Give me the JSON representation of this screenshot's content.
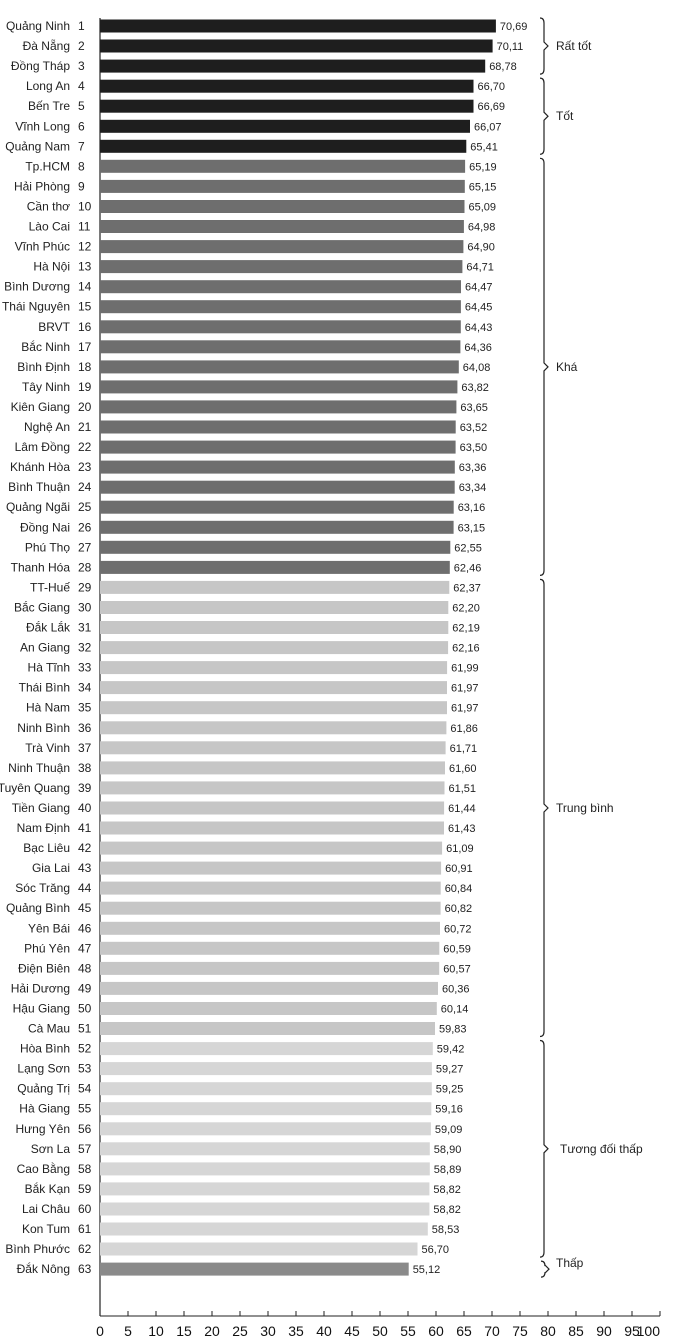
{
  "chart_data": {
    "type": "bar",
    "orientation": "horizontal",
    "xlim": [
      0,
      100
    ],
    "xticks": [
      0,
      5,
      10,
      15,
      20,
      25,
      30,
      35,
      40,
      45,
      50,
      55,
      60,
      65,
      70,
      75,
      80,
      85,
      90,
      95,
      100
    ],
    "colors": {
      "Rất tốt": "#1e1e1e",
      "Tốt": "#1e1e1e",
      "Khá": "#6e6e6e",
      "Trung bình": "#c6c6c6",
      "Tương đối thấp": "#d6d6d6",
      "Thấp": "#8a8a8a"
    },
    "rows": [
      {
        "name": "Quảng Ninh",
        "rank": "1",
        "value": 70.69,
        "label": "70,69",
        "group": "Rất tốt"
      },
      {
        "name": "Đà Nẵng",
        "rank": "2",
        "value": 70.11,
        "label": "70,11",
        "group": "Rất tốt"
      },
      {
        "name": "Đồng Tháp",
        "rank": "3",
        "value": 68.78,
        "label": "68,78",
        "group": "Rất tốt"
      },
      {
        "name": "Long An",
        "rank": "4",
        "value": 66.7,
        "label": "66,70",
        "group": "Tốt"
      },
      {
        "name": "Bến Tre",
        "rank": "5",
        "value": 66.69,
        "label": "66,69",
        "group": "Tốt"
      },
      {
        "name": "Vĩnh Long",
        "rank": "6",
        "value": 66.07,
        "label": "66,07",
        "group": "Tốt"
      },
      {
        "name": "Quảng Nam",
        "rank": "7",
        "value": 65.41,
        "label": "65,41",
        "group": "Tốt"
      },
      {
        "name": "Tp.HCM",
        "rank": "8",
        "value": 65.19,
        "label": "65,19",
        "group": "Khá"
      },
      {
        "name": "Hải Phòng",
        "rank": "9",
        "value": 65.15,
        "label": "65,15",
        "group": "Khá"
      },
      {
        "name": "Cần thơ",
        "rank": "10",
        "value": 65.09,
        "label": "65,09",
        "group": "Khá"
      },
      {
        "name": "Lào Cai",
        "rank": "11",
        "value": 64.98,
        "label": "64,98",
        "group": "Khá"
      },
      {
        "name": "Vĩnh Phúc",
        "rank": "12",
        "value": 64.9,
        "label": "64,90",
        "group": "Khá"
      },
      {
        "name": "Hà Nội",
        "rank": "13",
        "value": 64.71,
        "label": "64,71",
        "group": "Khá"
      },
      {
        "name": "Bình Dương",
        "rank": "14",
        "value": 64.47,
        "label": "64,47",
        "group": "Khá"
      },
      {
        "name": "Thái Nguyên",
        "rank": "15",
        "value": 64.45,
        "label": "64,45",
        "group": "Khá"
      },
      {
        "name": "BRVT",
        "rank": "16",
        "value": 64.43,
        "label": "64,43",
        "group": "Khá"
      },
      {
        "name": "Bắc Ninh",
        "rank": "17",
        "value": 64.36,
        "label": "64,36",
        "group": "Khá"
      },
      {
        "name": "Bình Định",
        "rank": "18",
        "value": 64.08,
        "label": "64,08",
        "group": "Khá"
      },
      {
        "name": "Tây Ninh",
        "rank": "19",
        "value": 63.82,
        "label": "63,82",
        "group": "Khá"
      },
      {
        "name": "Kiên Giang",
        "rank": "20",
        "value": 63.65,
        "label": "63,65",
        "group": "Khá"
      },
      {
        "name": "Nghệ An",
        "rank": "21",
        "value": 63.52,
        "label": "63,52",
        "group": "Khá"
      },
      {
        "name": "Lâm Đồng",
        "rank": "22",
        "value": 63.5,
        "label": "63,50",
        "group": "Khá"
      },
      {
        "name": "Khánh Hòa",
        "rank": "23",
        "value": 63.36,
        "label": "63,36",
        "group": "Khá"
      },
      {
        "name": "Bình Thuận",
        "rank": "24",
        "value": 63.34,
        "label": "63,34",
        "group": "Khá"
      },
      {
        "name": "Quảng Ngãi",
        "rank": "25",
        "value": 63.16,
        "label": "63,16",
        "group": "Khá"
      },
      {
        "name": "Đồng Nai",
        "rank": "26",
        "value": 63.15,
        "label": "63,15",
        "group": "Khá"
      },
      {
        "name": "Phú Thọ",
        "rank": "27",
        "value": 62.55,
        "label": "62,55",
        "group": "Khá"
      },
      {
        "name": "Thanh Hóa",
        "rank": "28",
        "value": 62.46,
        "label": "62,46",
        "group": "Khá"
      },
      {
        "name": "TT-Huế",
        "rank": "29",
        "value": 62.37,
        "label": "62,37",
        "group": "Trung bình"
      },
      {
        "name": "Bắc Giang",
        "rank": "30",
        "value": 62.2,
        "label": "62,20",
        "group": "Trung bình"
      },
      {
        "name": "Đắk Lắk",
        "rank": "31",
        "value": 62.19,
        "label": "62,19",
        "group": "Trung bình"
      },
      {
        "name": "An Giang",
        "rank": "32",
        "value": 62.16,
        "label": "62,16",
        "group": "Trung bình"
      },
      {
        "name": "Hà Tĩnh",
        "rank": "33",
        "value": 61.99,
        "label": "61,99",
        "group": "Trung bình"
      },
      {
        "name": "Thái Bình",
        "rank": "34",
        "value": 61.97,
        "label": "61,97",
        "group": "Trung bình"
      },
      {
        "name": "Hà Nam",
        "rank": "35",
        "value": 61.97,
        "label": "61,97",
        "group": "Trung bình"
      },
      {
        "name": "Ninh Bình",
        "rank": "36",
        "value": 61.86,
        "label": "61,86",
        "group": "Trung bình"
      },
      {
        "name": "Trà Vinh",
        "rank": "37",
        "value": 61.71,
        "label": "61,71",
        "group": "Trung bình"
      },
      {
        "name": "Ninh Thuận",
        "rank": "38",
        "value": 61.6,
        "label": "61,60",
        "group": "Trung bình"
      },
      {
        "name": "Tuyên Quang",
        "rank": "39",
        "value": 61.51,
        "label": "61,51",
        "group": "Trung bình"
      },
      {
        "name": "Tiền Giang",
        "rank": "40",
        "value": 61.44,
        "label": "61,44",
        "group": "Trung bình"
      },
      {
        "name": "Nam Định",
        "rank": "41",
        "value": 61.43,
        "label": "61,43",
        "group": "Trung bình"
      },
      {
        "name": "Bạc Liêu",
        "rank": "42",
        "value": 61.09,
        "label": "61,09",
        "group": "Trung bình"
      },
      {
        "name": "Gia Lai",
        "rank": "43",
        "value": 60.91,
        "label": "60,91",
        "group": "Trung bình"
      },
      {
        "name": "Sóc Trăng",
        "rank": "44",
        "value": 60.84,
        "label": "60,84",
        "group": "Trung bình"
      },
      {
        "name": "Quảng Bình",
        "rank": "45",
        "value": 60.82,
        "label": "60,82",
        "group": "Trung bình"
      },
      {
        "name": "Yên Bái",
        "rank": "46",
        "value": 60.72,
        "label": "60,72",
        "group": "Trung bình"
      },
      {
        "name": "Phú Yên",
        "rank": "47",
        "value": 60.59,
        "label": "60,59",
        "group": "Trung bình"
      },
      {
        "name": "Điện Biên",
        "rank": "48",
        "value": 60.57,
        "label": "60,57",
        "group": "Trung bình"
      },
      {
        "name": "Hải Dương",
        "rank": "49",
        "value": 60.36,
        "label": "60,36",
        "group": "Trung bình"
      },
      {
        "name": "Hậu Giang",
        "rank": "50",
        "value": 60.14,
        "label": "60,14",
        "group": "Trung bình"
      },
      {
        "name": "Cà Mau",
        "rank": "51",
        "value": 59.83,
        "label": "59,83",
        "group": "Trung bình"
      },
      {
        "name": "Hòa Bình",
        "rank": "52",
        "value": 59.42,
        "label": "59,42",
        "group": "Tương đối thấp"
      },
      {
        "name": "Lạng Sơn",
        "rank": "53",
        "value": 59.27,
        "label": "59,27",
        "group": "Tương đối thấp"
      },
      {
        "name": "Quảng Trị",
        "rank": "54",
        "value": 59.25,
        "label": "59,25",
        "group": "Tương đối thấp"
      },
      {
        "name": "Hà Giang",
        "rank": "55",
        "value": 59.16,
        "label": "59,16",
        "group": "Tương đối thấp"
      },
      {
        "name": "Hưng Yên",
        "rank": "56",
        "value": 59.09,
        "label": "59,09",
        "group": "Tương đối thấp"
      },
      {
        "name": "Sơn La",
        "rank": "57",
        "value": 58.9,
        "label": "58,90",
        "group": "Tương đối thấp"
      },
      {
        "name": "Cao Bằng",
        "rank": "58",
        "value": 58.89,
        "label": "58,89",
        "group": "Tương đối thấp"
      },
      {
        "name": "Bắk Kạn",
        "rank": "59",
        "value": 58.82,
        "label": "58,82",
        "group": "Tương đối thấp"
      },
      {
        "name": "Lai Châu",
        "rank": "60",
        "value": 58.82,
        "label": "58,82",
        "group": "Tương đối thấp"
      },
      {
        "name": "Kon Tum",
        "rank": "61",
        "value": 58.53,
        "label": "58,53",
        "group": "Tương đối thấp"
      },
      {
        "name": "Bình Phước",
        "rank": "62",
        "value": 56.7,
        "label": "56,70",
        "group": "Tương đối thấp"
      },
      {
        "name": "Đắk Nông",
        "rank": "63",
        "value": 55.12,
        "label": "55,12",
        "group": "Thấp"
      }
    ],
    "groups": [
      {
        "label": "Rất tốt",
        "from": 1,
        "to": 3
      },
      {
        "label": "Tốt",
        "from": 4,
        "to": 7
      },
      {
        "label": "Khá",
        "from": 8,
        "to": 28
      },
      {
        "label": "Trung bình",
        "from": 29,
        "to": 51
      },
      {
        "label": "Tương đối thấp",
        "from": 52,
        "to": 62
      },
      {
        "label": "Thấp",
        "from": 63,
        "to": 63
      }
    ]
  }
}
